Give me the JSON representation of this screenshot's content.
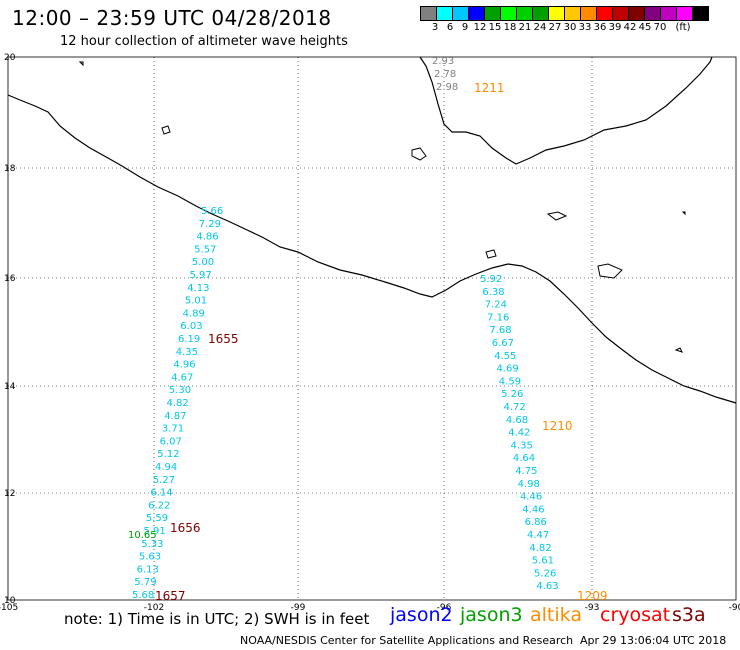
{
  "header": {
    "title": "12:00 – 23:59 UTC 04/28/2018",
    "subtitle": "12 hour collection of altimeter wave heights"
  },
  "color_scale": {
    "colors": [
      "#808080",
      "#00ffff",
      "#00c8ff",
      "#0000ff",
      "#00a000",
      "#00ff00",
      "#00d000",
      "#00a000",
      "#ffff00",
      "#ffc800",
      "#ff8c00",
      "#ff0000",
      "#c00000",
      "#800000",
      "#800080",
      "#c000c0",
      "#ff00ff",
      "#000000"
    ],
    "labels": [
      "3",
      "6",
      "9",
      "12",
      "15",
      "18",
      "21",
      "24",
      "27",
      "30",
      "33",
      "36",
      "39",
      "42",
      "45",
      "70",
      "(ft)"
    ]
  },
  "axes": {
    "lat_labels": [
      "20",
      "18",
      "16",
      "14",
      "12",
      "10"
    ],
    "lon_labels": [
      "-105",
      "-102",
      "-99",
      "-96",
      "-93",
      "-90"
    ]
  },
  "tracks": {
    "left_jason_values": [
      "5.66",
      "7.29",
      "4.86",
      "5.57",
      "5.00",
      "5.97",
      "4.13",
      "5.01",
      "4.89",
      "6.03",
      "6.19",
      "4.35",
      "4.96",
      "4.67",
      "5.30",
      "4.82",
      "4.87",
      "3.71",
      "6.07",
      "5.12",
      "4.94",
      "5.27",
      "6.14",
      "6.22",
      "5.59",
      "5.91",
      "5.33",
      "5.63",
      "6.13",
      "5.79",
      "5.68"
    ],
    "left_green_value": "10.65",
    "right_jason_values": [
      "5.92",
      "6.38",
      "7.24",
      "7.16",
      "7.68",
      "6.67",
      "4.55",
      "4.69",
      "4.59",
      "5.26",
      "4.72",
      "4.68",
      "4.42",
      "4.35",
      "4.64",
      "4.75",
      "4.98",
      "4.46",
      "4.46",
      "6.86",
      "4.47",
      "4.82",
      "5.61",
      "5.26",
      "4.63"
    ],
    "gulf_values": [
      "2.93",
      "2.78",
      "2.98"
    ],
    "time_labels": {
      "t1655": "1655",
      "t1656": "1656",
      "t1657": "1657",
      "t1211": "1211",
      "t1210": "1210",
      "t1209": "1209"
    }
  },
  "legend": {
    "note": "note: 1) Time is in UTC; 2) SWH is in feet",
    "jason2": "jason2",
    "jason3": "jason3",
    "altika": "altika",
    "cryosat": "cryosat",
    "s3a": "s3a",
    "colors": {
      "jason2": "#0000ff",
      "jason3": "#00a000",
      "altika": "#ff8c00",
      "cryosat": "#ff0000",
      "s3a": "#800000",
      "track_value": "#00c8e8",
      "time_label_left": "#800000",
      "time_label_right": "#ff8c00"
    }
  },
  "footer": {
    "credit": "NOAA/NESDIS Center for Satellite Applications and Research",
    "timestamp": "Apr 29 13:06:04 UTC 2018"
  }
}
